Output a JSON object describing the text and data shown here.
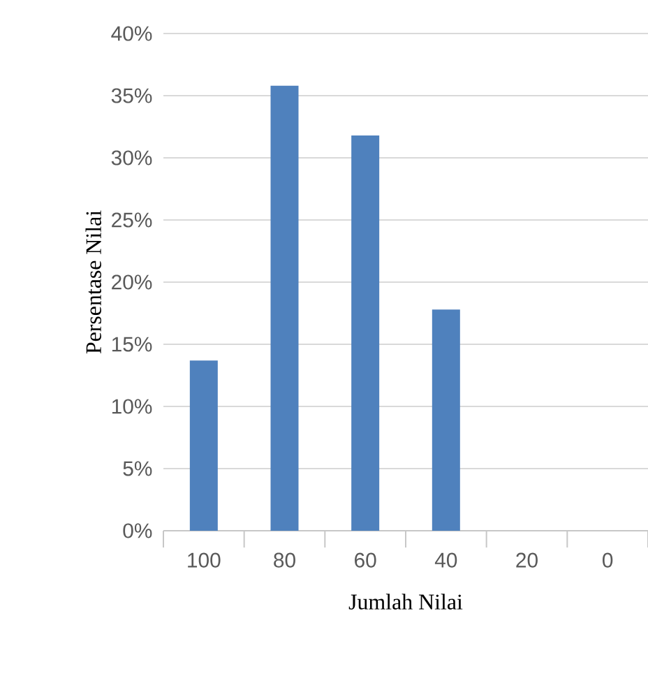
{
  "chart_data": {
    "type": "bar",
    "xlabel": "Jumlah Nilai",
    "ylabel": "Persentase Nilai",
    "categories": [
      "100",
      "80",
      "60",
      "40",
      "20",
      "0"
    ],
    "values": [
      13.7,
      35.8,
      31.8,
      17.8,
      0,
      0
    ],
    "color": "#4f81bd",
    "ylim": [
      0,
      40
    ],
    "yticks": [
      {
        "value": 0,
        "label": "0%"
      },
      {
        "value": 5,
        "label": "5%"
      },
      {
        "value": 10,
        "label": "10%"
      },
      {
        "value": 15,
        "label": "15%"
      },
      {
        "value": 20,
        "label": "20%"
      },
      {
        "value": 25,
        "label": "25%"
      },
      {
        "value": 30,
        "label": "30%"
      },
      {
        "value": 35,
        "label": "35%"
      },
      {
        "value": 40,
        "label": "40%"
      }
    ],
    "grid": "y"
  }
}
